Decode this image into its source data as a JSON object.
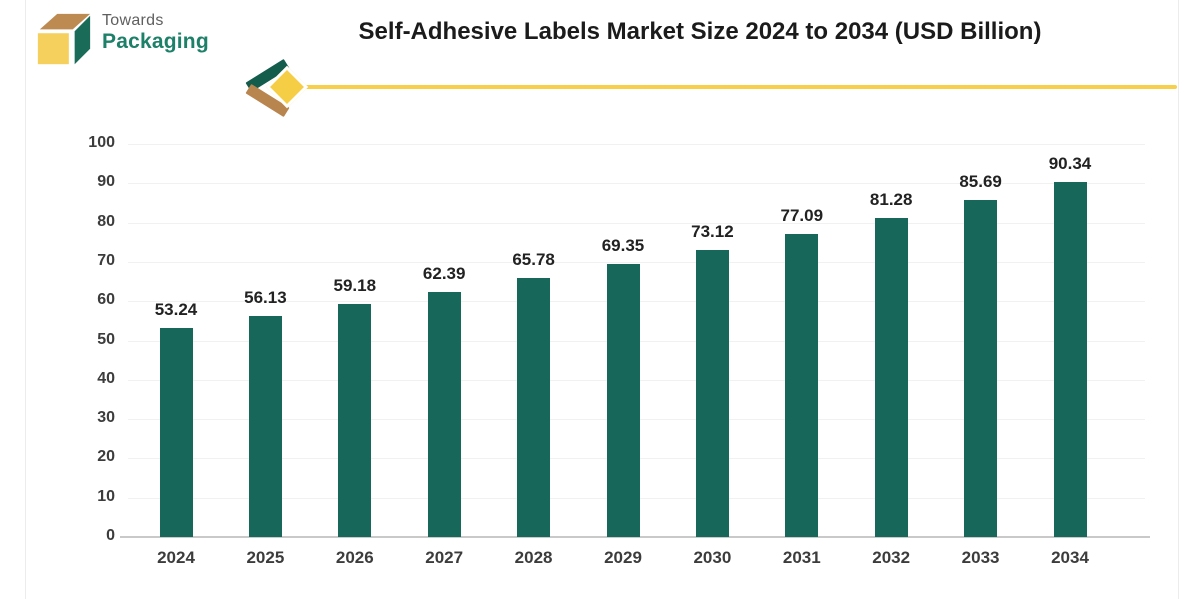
{
  "logo": {
    "line1": "Towards",
    "line2": "Packaging",
    "cube_colors": {
      "top": "#bd8a52",
      "right": "#1a6b58",
      "front": "#f6d05c"
    }
  },
  "header": {
    "title": "Self-Adhesive Labels Market Size 2024 to 2034 (USD Billion)",
    "divider_color": "#f7cf4a"
  },
  "chart_data": {
    "type": "bar",
    "title": "Self-Adhesive Labels Market Size 2024 to 2034 (USD Billion)",
    "categories": [
      "2024",
      "2025",
      "2026",
      "2027",
      "2028",
      "2029",
      "2030",
      "2031",
      "2032",
      "2033",
      "2034"
    ],
    "values": [
      53.24,
      56.13,
      59.18,
      62.39,
      65.78,
      69.35,
      73.12,
      77.09,
      81.28,
      85.69,
      90.34
    ],
    "value_labels": [
      "53.24",
      "56.13",
      "59.18",
      "62.39",
      "65.78",
      "69.35",
      "73.12",
      "77.09",
      "81.28",
      "85.69",
      "90.34"
    ],
    "xlabel": "",
    "ylabel": "",
    "ylim": [
      0,
      100
    ],
    "ytick_step": 10,
    "yticks": [
      0,
      10,
      20,
      30,
      40,
      50,
      60,
      70,
      80,
      90,
      100
    ],
    "grid": true,
    "legend": false,
    "bar_color": "#17685b",
    "value_labels_shown": true
  }
}
